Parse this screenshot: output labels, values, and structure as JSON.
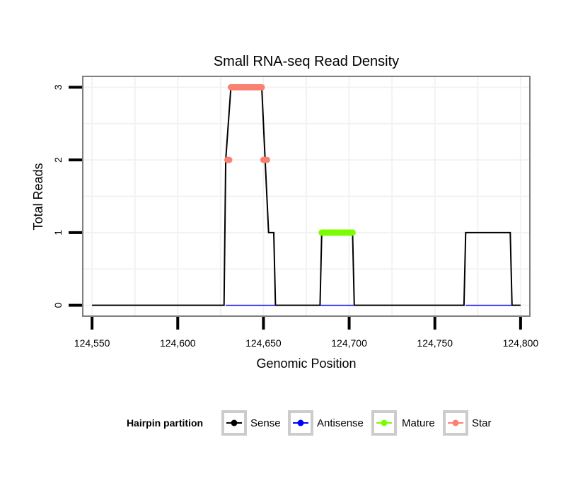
{
  "chart_data": {
    "type": "line",
    "title": "Small RNA-seq Read Density",
    "xlabel": "Genomic Position",
    "ylabel": "Total Reads",
    "xlim": [
      124545,
      124805
    ],
    "ylim": [
      -0.14,
      3.14
    ],
    "x_ticks": [
      124550,
      124600,
      124650,
      124700,
      124750,
      124800
    ],
    "x_tick_labels": [
      "124,550",
      "124,600",
      "124,650",
      "124,700",
      "124,750",
      "124,800"
    ],
    "y_ticks": [
      0,
      1,
      2,
      3
    ],
    "y_tick_labels": [
      "0",
      "1",
      "2",
      "3"
    ],
    "grid": true,
    "legend": {
      "title": "Hairpin partition",
      "position": "bottom",
      "entries": [
        {
          "name": "Sense",
          "color": "#000000"
        },
        {
          "name": "Antisense",
          "color": "#0000ff"
        },
        {
          "name": "Mature",
          "color": "#7cfc00"
        },
        {
          "name": "Star",
          "color": "#fa8072"
        }
      ]
    },
    "series": [
      {
        "name": "Sense",
        "color": "#000000",
        "points": [
          [
            124550,
            0
          ],
          [
            124627,
            0
          ],
          [
            124628,
            2
          ],
          [
            124631,
            3
          ],
          [
            124649,
            3
          ],
          [
            124651,
            2
          ],
          [
            124653,
            1
          ],
          [
            124656,
            1
          ],
          [
            124657,
            0
          ],
          [
            124683,
            0
          ],
          [
            124684,
            1
          ],
          [
            124702,
            1
          ],
          [
            124703,
            0
          ],
          [
            124767,
            0
          ],
          [
            124768,
            1
          ],
          [
            124794,
            1
          ],
          [
            124795,
            0
          ],
          [
            124800,
            0
          ]
        ]
      },
      {
        "name": "Antisense",
        "color": "#0000ff",
        "points": [
          [
            124628,
            0
          ],
          [
            124657,
            0
          ],
          [
            124683,
            0
          ],
          [
            124703,
            0
          ],
          [
            124768,
            0
          ],
          [
            124795,
            0
          ]
        ]
      },
      {
        "name": "Mature",
        "color": "#7cfc00",
        "points": [
          [
            124684,
            1
          ],
          [
            124685,
            1
          ],
          [
            124686,
            1
          ],
          [
            124687,
            1
          ],
          [
            124688,
            1
          ],
          [
            124689,
            1
          ],
          [
            124690,
            1
          ],
          [
            124691,
            1
          ],
          [
            124692,
            1
          ],
          [
            124693,
            1
          ],
          [
            124694,
            1
          ],
          [
            124695,
            1
          ],
          [
            124696,
            1
          ],
          [
            124697,
            1
          ],
          [
            124698,
            1
          ],
          [
            124699,
            1
          ],
          [
            124700,
            1
          ],
          [
            124701,
            1
          ],
          [
            124702,
            1
          ]
        ]
      },
      {
        "name": "Star",
        "color": "#fa8072",
        "points": [
          [
            124629,
            2
          ],
          [
            124630,
            2
          ],
          [
            124631,
            3
          ],
          [
            124632,
            3
          ],
          [
            124633,
            3
          ],
          [
            124634,
            3
          ],
          [
            124635,
            3
          ],
          [
            124636,
            3
          ],
          [
            124637,
            3
          ],
          [
            124638,
            3
          ],
          [
            124639,
            3
          ],
          [
            124640,
            3
          ],
          [
            124641,
            3
          ],
          [
            124642,
            3
          ],
          [
            124643,
            3
          ],
          [
            124644,
            3
          ],
          [
            124645,
            3
          ],
          [
            124646,
            3
          ],
          [
            124647,
            3
          ],
          [
            124648,
            3
          ],
          [
            124649,
            3
          ],
          [
            124650,
            2
          ],
          [
            124651,
            2
          ],
          [
            124652,
            2
          ]
        ]
      }
    ]
  }
}
